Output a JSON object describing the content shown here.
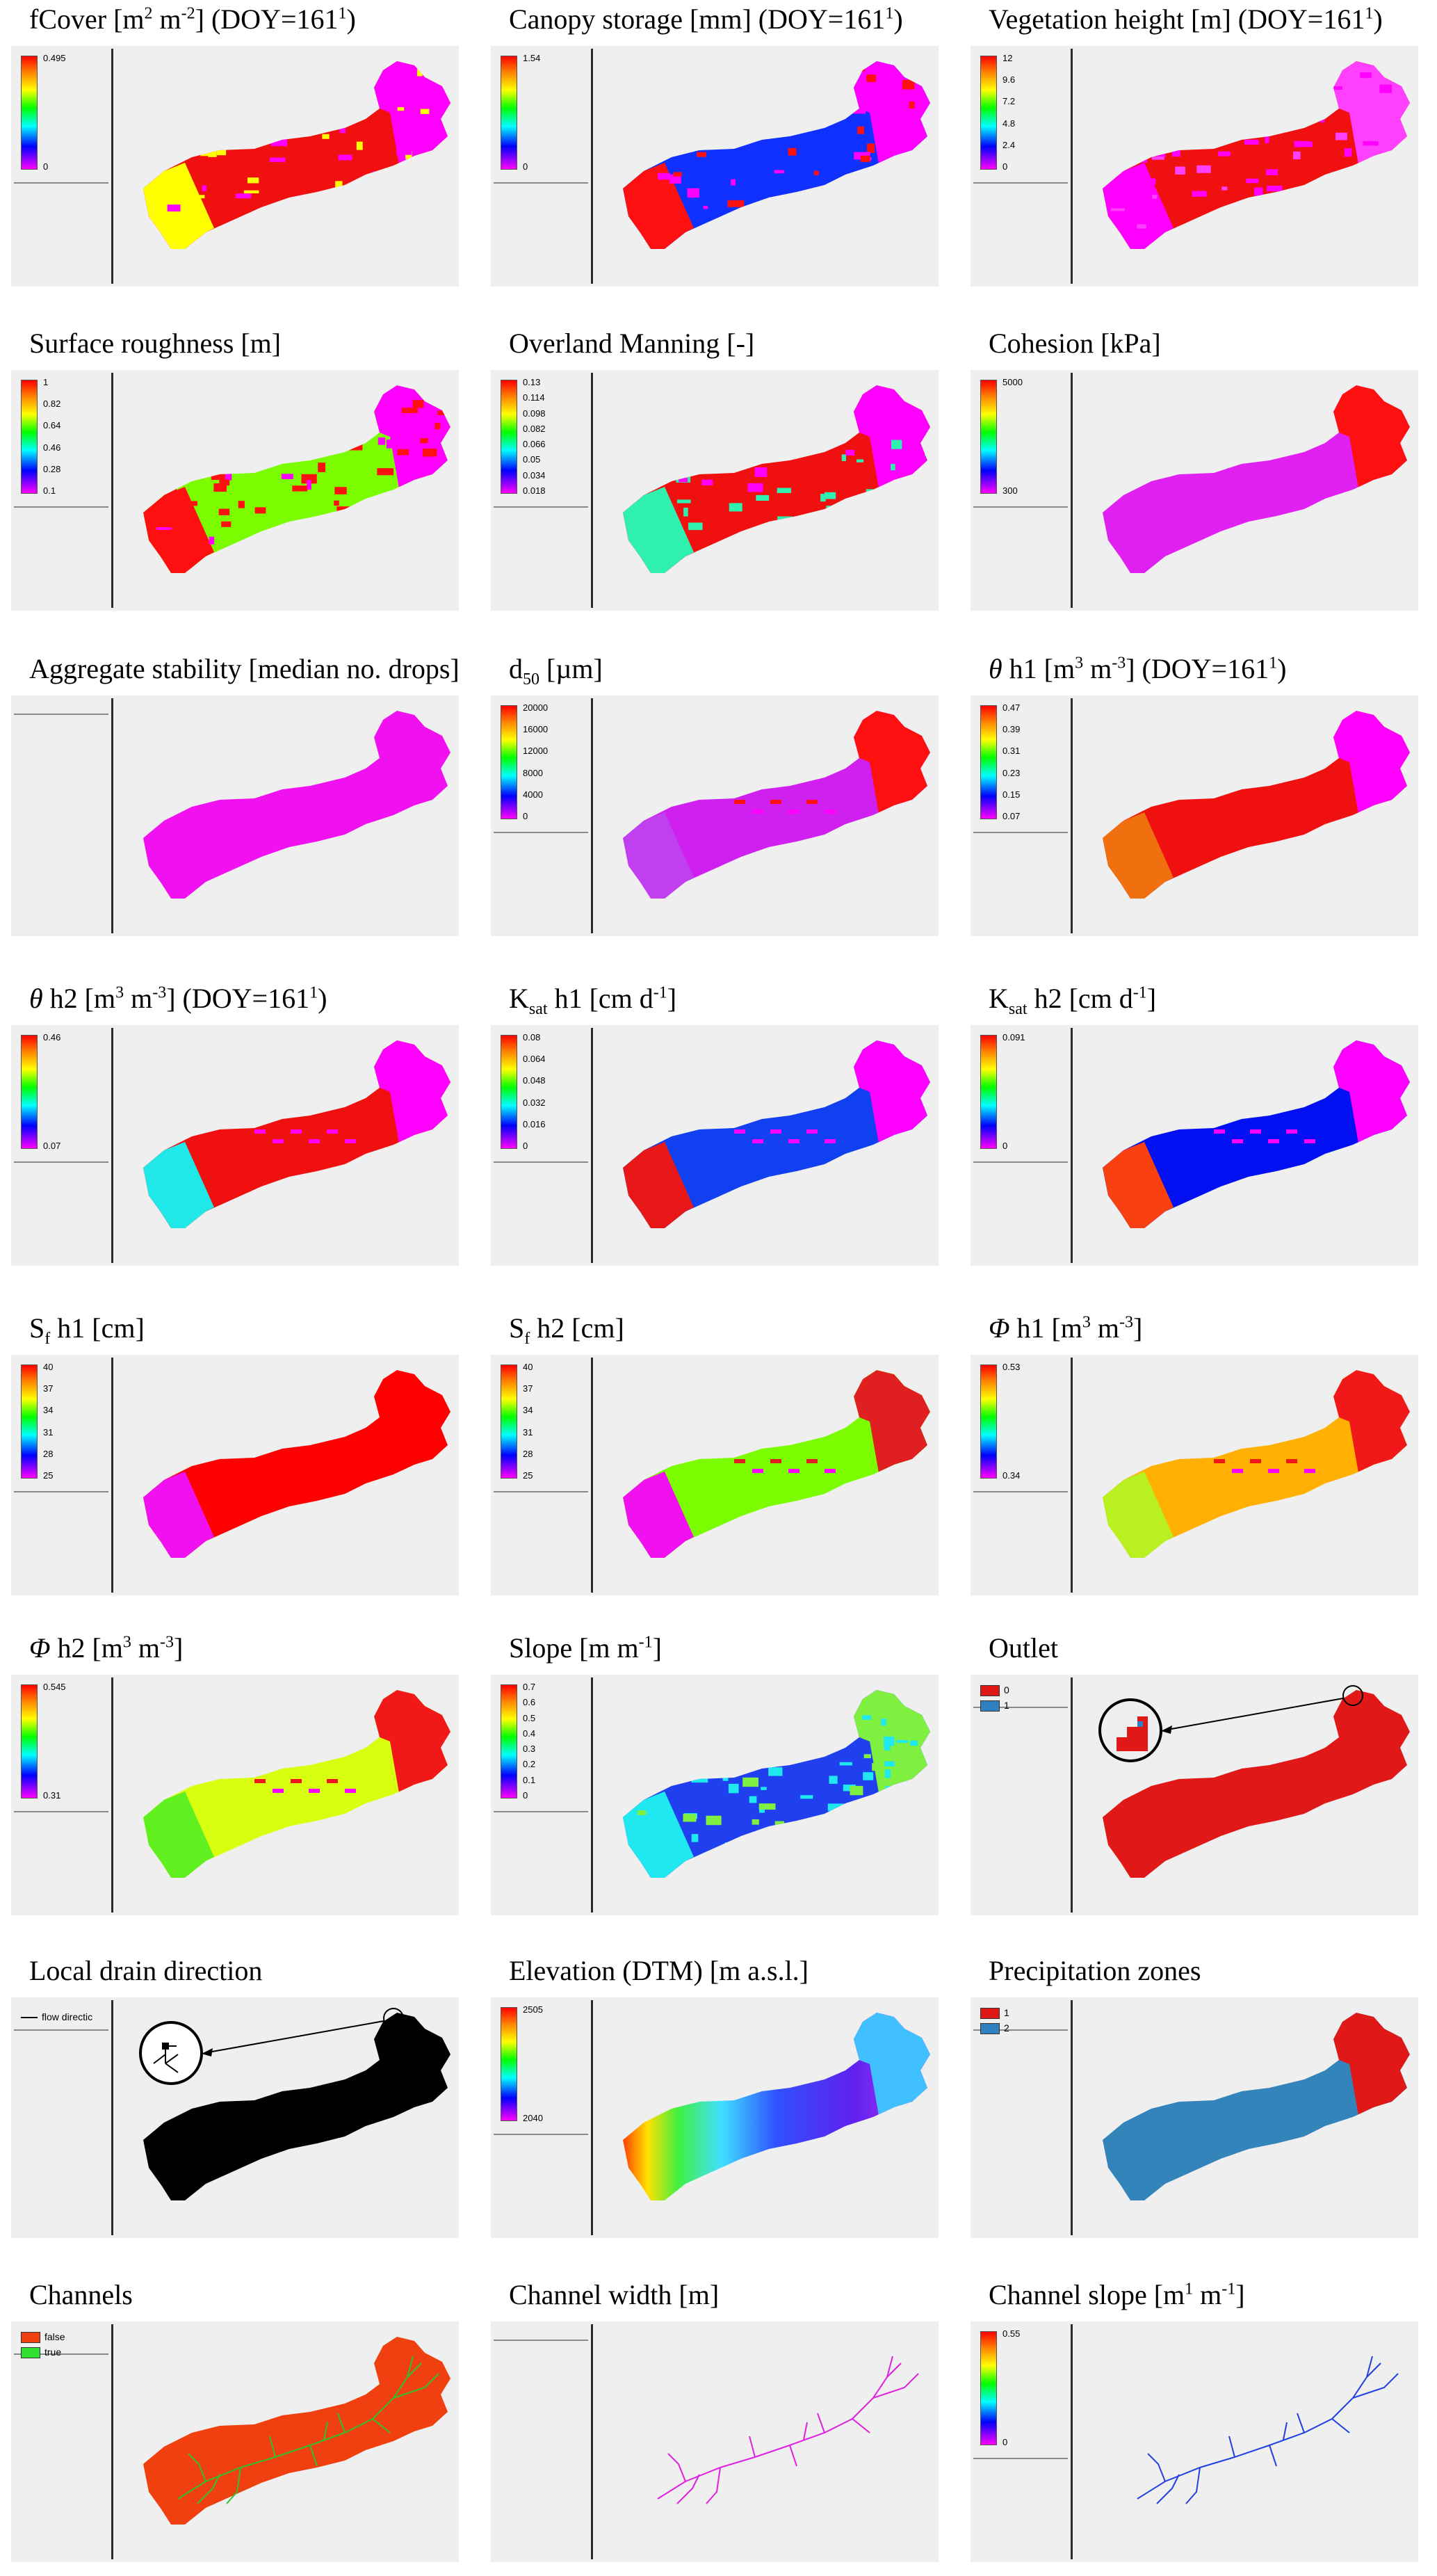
{
  "panels": [
    {
      "id": "fcover",
      "title_parts": [
        {
          "t": "fCover [m"
        },
        {
          "t": "2",
          "tag": "sup"
        },
        {
          "t": " m"
        },
        {
          "t": "-2",
          "tag": "sup"
        },
        {
          "t": "] (DOY=161"
        },
        {
          "t": "1",
          "tag": "sup"
        },
        {
          "t": ")"
        }
      ],
      "legend": {
        "kind": "colorbar",
        "ticks": [
          "0.495",
          "0"
        ]
      },
      "fill": {
        "main": "#f01010",
        "second": "#ffff00",
        "third": "#ff00ff"
      }
    },
    {
      "id": "canopy-storage",
      "title_parts": [
        {
          "t": "Canopy storage [mm] (DOY=161"
        },
        {
          "t": "1",
          "tag": "sup"
        },
        {
          "t": ")"
        }
      ],
      "legend": {
        "kind": "colorbar",
        "ticks": [
          "1.54",
          "0"
        ]
      },
      "fill": {
        "main": "#1030ff",
        "second": "#ff1010",
        "third": "#ff00ff"
      }
    },
    {
      "id": "vegetation-height",
      "title_parts": [
        {
          "t": "Vegetation height [m] (DOY=161"
        },
        {
          "t": "1",
          "tag": "sup"
        },
        {
          "t": ")"
        }
      ],
      "legend": {
        "kind": "colorbar",
        "ticks": [
          "12",
          "9.6",
          "7.2",
          "4.8",
          "2.4",
          "0"
        ]
      },
      "fill": {
        "main": "#f01010",
        "second": "#ff00ff",
        "third": "#ff40ff"
      }
    },
    {
      "id": "surface-roughness",
      "title_parts": [
        {
          "t": "Surface roughness [m]"
        }
      ],
      "legend": {
        "kind": "colorbar",
        "ticks": [
          "1",
          "0.82",
          "0.64",
          "0.46",
          "0.28",
          "0.1"
        ]
      },
      "fill": {
        "main": "#7cfc00",
        "second": "#ff1010",
        "third": "#ff00ff"
      }
    },
    {
      "id": "overland-manning",
      "title_parts": [
        {
          "t": "Overland Manning [-]"
        }
      ],
      "legend": {
        "kind": "colorbar",
        "ticks": [
          "0.13",
          "0.114",
          "0.098",
          "0.082",
          "0.066",
          "0.05",
          "0.034",
          "0.018"
        ]
      },
      "fill": {
        "main": "#f01010",
        "second": "#30f0b0",
        "third": "#ff00ff"
      }
    },
    {
      "id": "cohesion",
      "title_parts": [
        {
          "t": "Cohesion [kPa]"
        }
      ],
      "legend": {
        "kind": "colorbar",
        "ticks": [
          "5000",
          "300"
        ]
      },
      "fill": {
        "main": "#e020f0",
        "second": "#e020f0",
        "third": "#ff1010"
      }
    },
    {
      "id": "aggregate-stability",
      "title_parts": [
        {
          "t": "Aggregate stability [median no. drops]"
        }
      ],
      "legend": {
        "kind": "empty"
      },
      "fill": {
        "main": "#f010f0",
        "second": "#f010f0",
        "third": "#f010f0"
      }
    },
    {
      "id": "d50",
      "title_parts": [
        {
          "t": "d"
        },
        {
          "t": "50",
          "tag": "sub"
        },
        {
          "t": " [µm]"
        }
      ],
      "legend": {
        "kind": "colorbar",
        "ticks": [
          "20000",
          "16000",
          "12000",
          "8000",
          "4000",
          "0"
        ]
      },
      "fill": {
        "main": "#d020f0",
        "second": "#c040f0",
        "third": "#ff1010"
      }
    },
    {
      "id": "theta-h1",
      "title_parts": [
        {
          "t": "θ",
          "tag": "i"
        },
        {
          "t": " h1 [m"
        },
        {
          "t": "3",
          "tag": "sup"
        },
        {
          "t": " m"
        },
        {
          "t": "-3",
          "tag": "sup"
        },
        {
          "t": "] (DOY=161"
        },
        {
          "t": "1",
          "tag": "sup"
        },
        {
          "t": ")"
        }
      ],
      "legend": {
        "kind": "colorbar",
        "ticks": [
          "0.47",
          "0.39",
          "0.31",
          "0.23",
          "0.15",
          "0.07"
        ]
      },
      "fill": {
        "main": "#f01010",
        "second": "#f07010",
        "third": "#ff00ff"
      }
    },
    {
      "id": "theta-h2",
      "title_parts": [
        {
          "t": "θ",
          "tag": "i"
        },
        {
          "t": " h2 [m"
        },
        {
          "t": "3",
          "tag": "sup"
        },
        {
          "t": " m"
        },
        {
          "t": "-3",
          "tag": "sup"
        },
        {
          "t": "] (DOY=161"
        },
        {
          "t": "1",
          "tag": "sup"
        },
        {
          "t": ")"
        }
      ],
      "legend": {
        "kind": "colorbar",
        "ticks": [
          "0.46",
          "0.07"
        ]
      },
      "fill": {
        "main": "#f01010",
        "second": "#20e8e8",
        "third": "#ff00ff"
      }
    },
    {
      "id": "ksat-h1",
      "title_parts": [
        {
          "t": "K"
        },
        {
          "t": "sat",
          "tag": "sub"
        },
        {
          "t": " h1 [cm d"
        },
        {
          "t": "-1",
          "tag": "sup"
        },
        {
          "t": "]"
        }
      ],
      "legend": {
        "kind": "colorbar",
        "ticks": [
          "0.08",
          "0.064",
          "0.048",
          "0.032",
          "0.016",
          "0"
        ]
      },
      "fill": {
        "main": "#1040f0",
        "second": "#e81818",
        "third": "#ff00ff"
      }
    },
    {
      "id": "ksat-h2",
      "title_parts": [
        {
          "t": "K"
        },
        {
          "t": "sat",
          "tag": "sub"
        },
        {
          "t": " h2 [cm d"
        },
        {
          "t": "-1",
          "tag": "sup"
        },
        {
          "t": "]"
        }
      ],
      "legend": {
        "kind": "colorbar",
        "ticks": [
          "0.091",
          "0"
        ]
      },
      "fill": {
        "main": "#0010f0",
        "second": "#f84010",
        "third": "#ff00ff"
      }
    },
    {
      "id": "sf-h1",
      "title_parts": [
        {
          "t": "S"
        },
        {
          "t": "f",
          "tag": "sub"
        },
        {
          "t": " h1 [cm]"
        }
      ],
      "legend": {
        "kind": "colorbar",
        "ticks": [
          "40",
          "37",
          "34",
          "31",
          "28",
          "25"
        ]
      },
      "fill": {
        "main": "#ff0000",
        "second": "#f010f0",
        "third": "#ff0000"
      }
    },
    {
      "id": "sf-h2",
      "title_parts": [
        {
          "t": "S"
        },
        {
          "t": "f",
          "tag": "sub"
        },
        {
          "t": " h2 [cm]"
        }
      ],
      "legend": {
        "kind": "colorbar",
        "ticks": [
          "40",
          "37",
          "34",
          "31",
          "28",
          "25"
        ]
      },
      "fill": {
        "main": "#7cfc00",
        "second": "#f010f0",
        "third": "#e02020"
      }
    },
    {
      "id": "phi-h1",
      "title_parts": [
        {
          "t": "Φ",
          "tag": "i"
        },
        {
          "t": " h1 [m"
        },
        {
          "t": "3",
          "tag": "sup"
        },
        {
          "t": " m"
        },
        {
          "t": "-3",
          "tag": "sup"
        },
        {
          "t": "]"
        }
      ],
      "legend": {
        "kind": "colorbar",
        "ticks": [
          "0.53",
          "0.34"
        ]
      },
      "fill": {
        "main": "#ffb000",
        "second": "#b8f020",
        "third": "#f01818"
      }
    },
    {
      "id": "phi-h2",
      "title_parts": [
        {
          "t": "Φ",
          "tag": "i"
        },
        {
          "t": " h2 [m"
        },
        {
          "t": "3",
          "tag": "sup"
        },
        {
          "t": " m"
        },
        {
          "t": "-3",
          "tag": "sup"
        },
        {
          "t": "]"
        }
      ],
      "legend": {
        "kind": "colorbar",
        "ticks": [
          "0.545",
          "0.31"
        ]
      },
      "fill": {
        "main": "#d8ff10",
        "second": "#60f020",
        "third": "#f01818"
      }
    },
    {
      "id": "slope",
      "title_parts": [
        {
          "t": "Slope [m m"
        },
        {
          "t": "-1",
          "tag": "sup"
        },
        {
          "t": "]"
        }
      ],
      "legend": {
        "kind": "colorbar",
        "ticks": [
          "0.7",
          "0.6",
          "0.5",
          "0.4",
          "0.3",
          "0.2",
          "0.1",
          "0"
        ]
      },
      "fill": {
        "main": "#2040f0",
        "second": "#20e8f0",
        "third": "#80f040"
      }
    },
    {
      "id": "outlet",
      "title_parts": [
        {
          "t": "Outlet"
        }
      ],
      "legend": {
        "kind": "categories",
        "items": [
          {
            "label": "0",
            "color": "#e01818"
          },
          {
            "label": "1",
            "color": "#3080c0"
          }
        ]
      },
      "fill": {
        "main": "#e01818",
        "second": "#e01818",
        "third": "#e01818"
      },
      "callout": true
    },
    {
      "id": "local-drain-direction",
      "title_parts": [
        {
          "t": "Local drain direction"
        }
      ],
      "legend": {
        "kind": "line",
        "label": "flow directic"
      },
      "fill": {
        "main": "#000000",
        "second": "#000000",
        "third": "#000000"
      },
      "callout": true
    },
    {
      "id": "elevation",
      "title_parts": [
        {
          "t": "Elevation (DTM) [m a.s.l.]"
        }
      ],
      "legend": {
        "kind": "colorbar",
        "ticks": [
          "2505",
          "2040"
        ]
      },
      "fill": {
        "main": "gradient",
        "second": "#8020f0",
        "third": "#40c0ff"
      }
    },
    {
      "id": "precipitation-zones",
      "title_parts": [
        {
          "t": "Precipitation zones"
        }
      ],
      "legend": {
        "kind": "categories",
        "items": [
          {
            "label": "1",
            "color": "#e01818"
          },
          {
            "label": "2",
            "color": "#3080c0"
          }
        ]
      },
      "fill": {
        "main": "#3484bc",
        "second": "#3484bc",
        "third": "#e01818"
      }
    },
    {
      "id": "channels",
      "title_parts": [
        {
          "t": "Channels"
        }
      ],
      "legend": {
        "kind": "categories",
        "items": [
          {
            "label": "false",
            "color": "#f04010"
          },
          {
            "label": "true",
            "color": "#30e030"
          }
        ]
      },
      "fill": {
        "main": "#f04010",
        "second": "#f04010",
        "third": "#f04010"
      },
      "network": "#30c030"
    },
    {
      "id": "channel-width",
      "title_parts": [
        {
          "t": "Channel width [m]"
        }
      ],
      "legend": {
        "kind": "empty"
      },
      "fill": {
        "main": "none"
      },
      "network": "#e020e0"
    },
    {
      "id": "channel-slope",
      "title_parts": [
        {
          "t": "Channel slope [m"
        },
        {
          "t": "1",
          "tag": "sup"
        },
        {
          "t": " m"
        },
        {
          "t": "-1",
          "tag": "sup"
        },
        {
          "t": "]"
        }
      ],
      "legend": {
        "kind": "colorbar",
        "ticks": [
          "0.55",
          "0"
        ]
      },
      "fill": {
        "main": "none"
      },
      "network": "#2040e0"
    }
  ]
}
